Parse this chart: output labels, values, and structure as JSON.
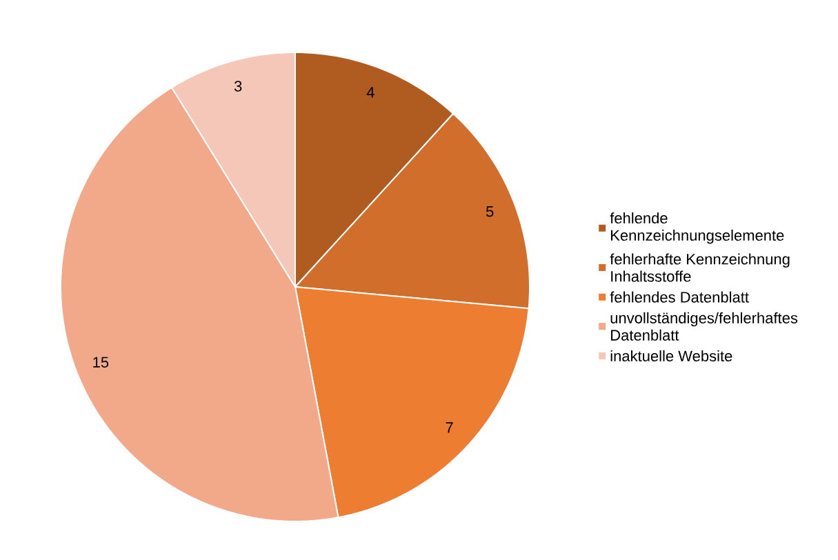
{
  "chart_data": {
    "type": "pie",
    "categories": [
      "fehlende Kennzeichnungselemente",
      "fehlerhafte Kennzeichnung Inhaltsstoffe",
      "fehlendes Datenblatt",
      "unvollständiges/fehlerhaftes Datenblatt",
      "inaktuelle Website"
    ],
    "values": [
      4,
      5,
      7,
      15,
      3
    ],
    "colors": [
      "#b05b20",
      "#d16e2b",
      "#ed7d31",
      "#f1a98a",
      "#f4c7b9"
    ],
    "data_labels": true,
    "legend": "right"
  }
}
